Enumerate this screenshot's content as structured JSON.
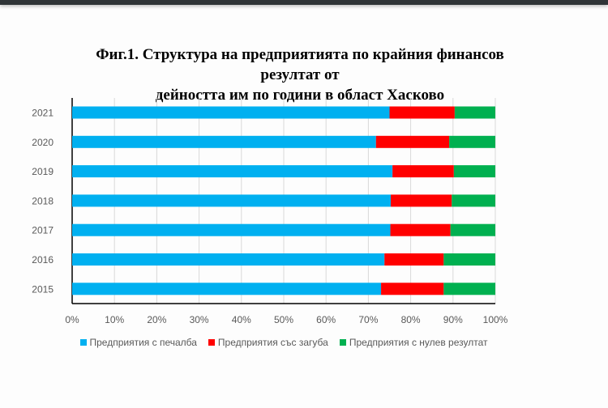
{
  "chart_data": {
    "type": "bar",
    "orientation": "horizontal",
    "stacked": "percent",
    "title": "Фиг.1. Структура на предприятията по крайния финансов резултат от дейността им по години в област Хасково",
    "title_lines": [
      "Фиг.1. Структура на предприятията по крайния финансов резултат от",
      "дейността им по години в област Хасково"
    ],
    "categories": [
      "2021",
      "2020",
      "2019",
      "2018",
      "2017",
      "2016",
      "2015"
    ],
    "series": [
      {
        "name": "Предприятия с печалба",
        "color": "#00b0f0",
        "values": [
          75.0,
          71.8,
          75.7,
          75.3,
          75.2,
          73.8,
          73.0
        ]
      },
      {
        "name": "Предприятия със загуба",
        "color": "#ff0000",
        "values": [
          15.4,
          17.3,
          14.5,
          14.4,
          14.2,
          14.0,
          14.8
        ]
      },
      {
        "name": "Предприятия с нулев резултат",
        "color": "#00b050",
        "values": [
          9.6,
          10.9,
          9.8,
          10.3,
          10.6,
          12.2,
          12.2
        ]
      }
    ],
    "xlim": [
      0,
      100
    ],
    "xticks": [
      "0%",
      "10%",
      "20%",
      "30%",
      "40%",
      "50%",
      "60%",
      "70%",
      "80%",
      "90%",
      "100%"
    ],
    "grid": true,
    "legend_position": "bottom"
  }
}
